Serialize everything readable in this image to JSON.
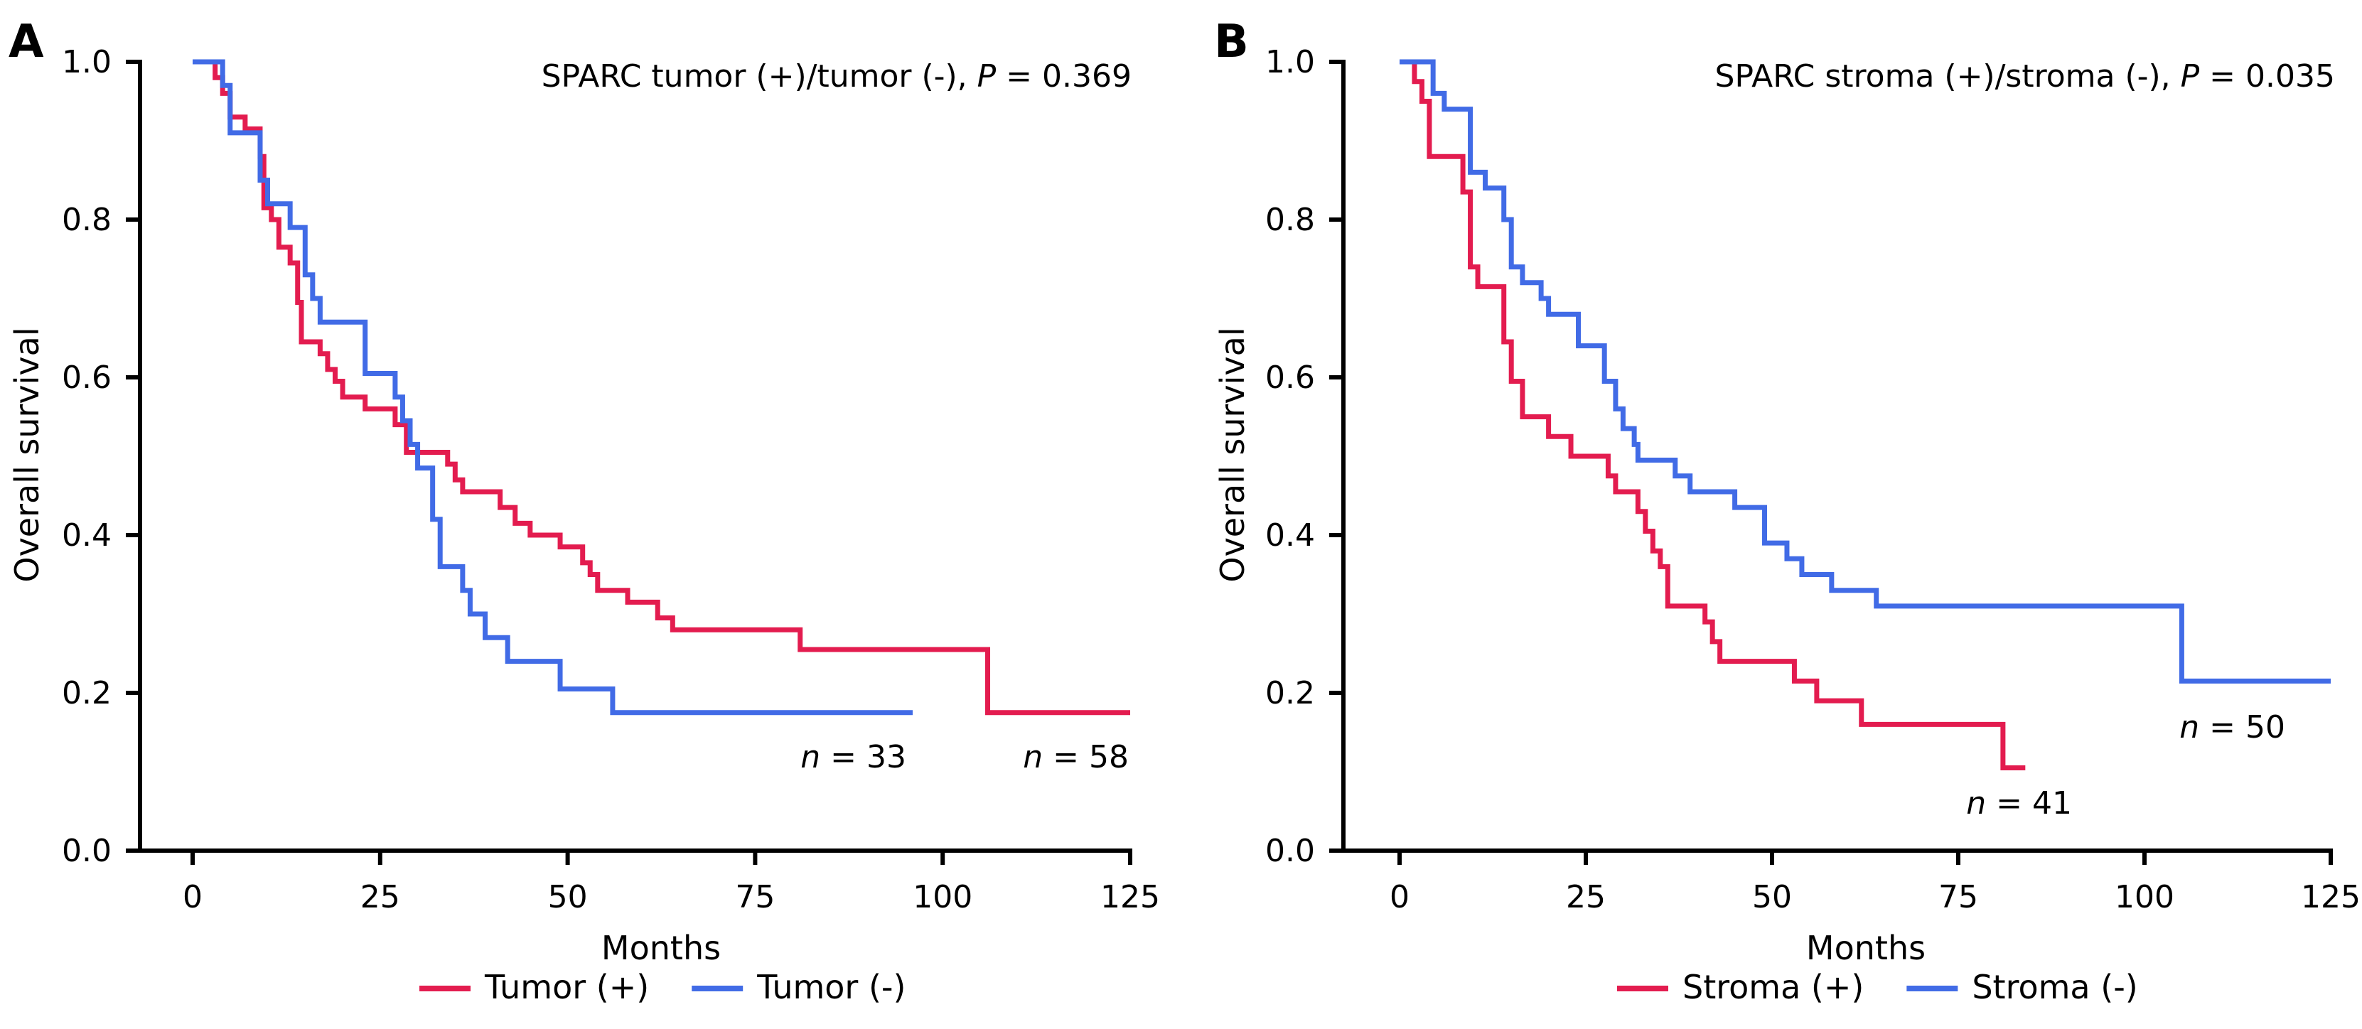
{
  "colors": {
    "positive": "#E31C4F",
    "negative": "#416BE6"
  },
  "chart_data": [
    {
      "type": "line",
      "panel": "A",
      "title": "SPARC tumor (+)/tumor (-), P = 0.369",
      "title_prefix": "SPARC tumor (+)/tumor (-), ",
      "p_label": "P",
      "p_value": " = 0.369",
      "xlabel": "Months",
      "ylabel": "Overall survival",
      "xlim": [
        0,
        125
      ],
      "ylim": [
        0,
        1.0
      ],
      "xticks": [
        0,
        25,
        50,
        75,
        100,
        125
      ],
      "yticks": [
        "0.0",
        "0.2",
        "0.4",
        "0.6",
        "0.8",
        "1.0"
      ],
      "grid": false,
      "legend_position": "bottom-center",
      "series": [
        {
          "name": "Tumor (+)",
          "color_key": "positive",
          "n_label": "= 58",
          "step": true,
          "x": [
            0,
            3,
            4,
            5,
            7,
            9,
            9.5,
            10.5,
            11.5,
            13,
            14,
            14.5,
            17,
            18,
            19,
            20,
            23,
            27,
            28.5,
            34,
            35,
            36,
            41,
            43,
            45,
            49,
            52,
            53,
            54,
            58,
            62,
            64,
            81,
            106,
            125
          ],
          "y": [
            1.0,
            0.98,
            0.96,
            0.93,
            0.915,
            0.88,
            0.815,
            0.8,
            0.765,
            0.745,
            0.695,
            0.645,
            0.63,
            0.61,
            0.595,
            0.575,
            0.56,
            0.54,
            0.505,
            0.49,
            0.47,
            0.455,
            0.435,
            0.415,
            0.4,
            0.385,
            0.365,
            0.35,
            0.33,
            0.315,
            0.295,
            0.28,
            0.255,
            0.175,
            0.175
          ]
        },
        {
          "name": "Tumor (-)",
          "color_key": "negative",
          "n_label": "= 33",
          "step": true,
          "x": [
            0,
            4,
            5,
            9,
            10,
            13,
            15,
            16,
            17,
            23,
            27,
            28,
            29,
            30,
            32,
            33,
            36,
            37,
            39,
            42,
            49,
            56,
            96
          ],
          "y": [
            1.0,
            0.97,
            0.91,
            0.85,
            0.82,
            0.79,
            0.73,
            0.7,
            0.67,
            0.605,
            0.575,
            0.545,
            0.515,
            0.485,
            0.42,
            0.36,
            0.33,
            0.3,
            0.27,
            0.24,
            0.205,
            0.175,
            0.175
          ]
        }
      ]
    },
    {
      "type": "line",
      "panel": "B",
      "title": "SPARC stroma (+)/stroma (-), P = 0.035",
      "title_prefix": "SPARC stroma (+)/stroma (-), ",
      "p_label": "P",
      "p_value": " = 0.035",
      "xlabel": "Months",
      "ylabel": "Overall survival",
      "xlim": [
        0,
        125
      ],
      "ylim": [
        0,
        1.0
      ],
      "xticks": [
        0,
        25,
        50,
        75,
        100,
        125
      ],
      "yticks": [
        "0.0",
        "0.2",
        "0.4",
        "0.6",
        "0.8",
        "1.0"
      ],
      "grid": false,
      "legend_position": "bottom-center",
      "series": [
        {
          "name": "Stroma (+)",
          "color_key": "positive",
          "n_label": "= 41",
          "step": true,
          "x": [
            0,
            2,
            3,
            4,
            8.5,
            9.5,
            10.5,
            14,
            15,
            16.5,
            20,
            23,
            28,
            29,
            32,
            33,
            34,
            35,
            36,
            41,
            42,
            43,
            53,
            56,
            62,
            81,
            84
          ],
          "y": [
            1.0,
            0.975,
            0.95,
            0.88,
            0.835,
            0.74,
            0.715,
            0.645,
            0.595,
            0.55,
            0.525,
            0.5,
            0.475,
            0.455,
            0.43,
            0.405,
            0.38,
            0.36,
            0.31,
            0.29,
            0.265,
            0.24,
            0.215,
            0.19,
            0.16,
            0.105,
            0.105
          ]
        },
        {
          "name": "Stroma (-)",
          "color_key": "negative",
          "n_label": "= 50",
          "step": true,
          "x": [
            0,
            4.5,
            6,
            9.5,
            11.5,
            14,
            15,
            16.5,
            19,
            20,
            24,
            27.5,
            29,
            30,
            31.5,
            32,
            37,
            39,
            45,
            49,
            52,
            54,
            58,
            64,
            105,
            125
          ],
          "y": [
            1.0,
            0.96,
            0.94,
            0.86,
            0.84,
            0.8,
            0.74,
            0.72,
            0.7,
            0.68,
            0.64,
            0.595,
            0.56,
            0.535,
            0.515,
            0.495,
            0.475,
            0.455,
            0.435,
            0.39,
            0.37,
            0.35,
            0.33,
            0.31,
            0.215,
            0.215
          ]
        }
      ]
    }
  ]
}
